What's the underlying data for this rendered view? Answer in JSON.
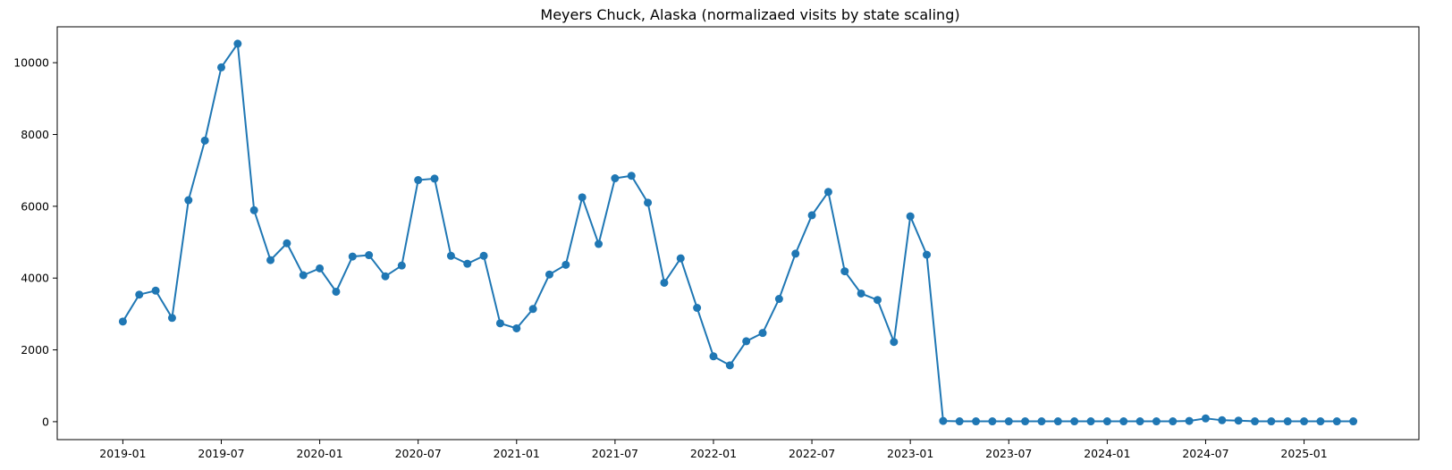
{
  "chart_data": {
    "type": "line",
    "title": "Meyers Chuck, Alaska (normalizaed visits by state scaling)",
    "xlabel": "",
    "ylabel": "",
    "grid": false,
    "marker": "circle",
    "color": "#1f77b4",
    "x_axis": {
      "min": "2018-09-01",
      "max": "2025-08-01",
      "ticks": [
        "2019-01",
        "2019-07",
        "2020-01",
        "2020-07",
        "2021-01",
        "2021-07",
        "2022-01",
        "2022-07",
        "2023-01",
        "2023-07",
        "2024-01",
        "2024-07",
        "2025-01"
      ]
    },
    "y_axis": {
      "min": -500,
      "max": 11000,
      "ticks": [
        0,
        2000,
        4000,
        6000,
        8000,
        10000
      ]
    },
    "series": [
      {
        "x": [
          "2019-01",
          "2019-02",
          "2019-03",
          "2019-04",
          "2019-05",
          "2019-06",
          "2019-07",
          "2019-08",
          "2019-09",
          "2019-10",
          "2019-11",
          "2019-12",
          "2020-01",
          "2020-02",
          "2020-03",
          "2020-04",
          "2020-05",
          "2020-06",
          "2020-07",
          "2020-08",
          "2020-09",
          "2020-10",
          "2020-11",
          "2020-12",
          "2021-01",
          "2021-02",
          "2021-03",
          "2021-04",
          "2021-05",
          "2021-06",
          "2021-07",
          "2021-08",
          "2021-09",
          "2021-10",
          "2021-11",
          "2021-12",
          "2022-01",
          "2022-02",
          "2022-03",
          "2022-04",
          "2022-05",
          "2022-06",
          "2022-07",
          "2022-08",
          "2022-09",
          "2022-10",
          "2022-11",
          "2022-12",
          "2023-01",
          "2023-02",
          "2023-03",
          "2023-04",
          "2023-05",
          "2023-06",
          "2023-07",
          "2023-08",
          "2023-09",
          "2023-10",
          "2023-11",
          "2023-12",
          "2024-01",
          "2024-02",
          "2024-03",
          "2024-04",
          "2024-05",
          "2024-06",
          "2024-07",
          "2024-08",
          "2024-09",
          "2024-10",
          "2024-11",
          "2024-12",
          "2025-01",
          "2025-02",
          "2025-03",
          "2025-04"
        ],
        "y": [
          2790,
          3540,
          3650,
          2890,
          6170,
          7830,
          9870,
          10530,
          5890,
          4500,
          4970,
          4080,
          4270,
          3620,
          4600,
          4640,
          4050,
          4350,
          6730,
          6770,
          4620,
          4400,
          4620,
          2740,
          2600,
          3140,
          4100,
          4370,
          6250,
          4950,
          6780,
          6850,
          6100,
          3870,
          4550,
          3170,
          1820,
          1570,
          2240,
          2470,
          3420,
          4680,
          5750,
          6400,
          4190,
          3570,
          3390,
          2220,
          5720,
          4650,
          20,
          10,
          10,
          10,
          10,
          10,
          10,
          10,
          10,
          10,
          10,
          10,
          10,
          10,
          10,
          20,
          90,
          40,
          30,
          10,
          10,
          10,
          10,
          10,
          10,
          10
        ]
      }
    ]
  }
}
